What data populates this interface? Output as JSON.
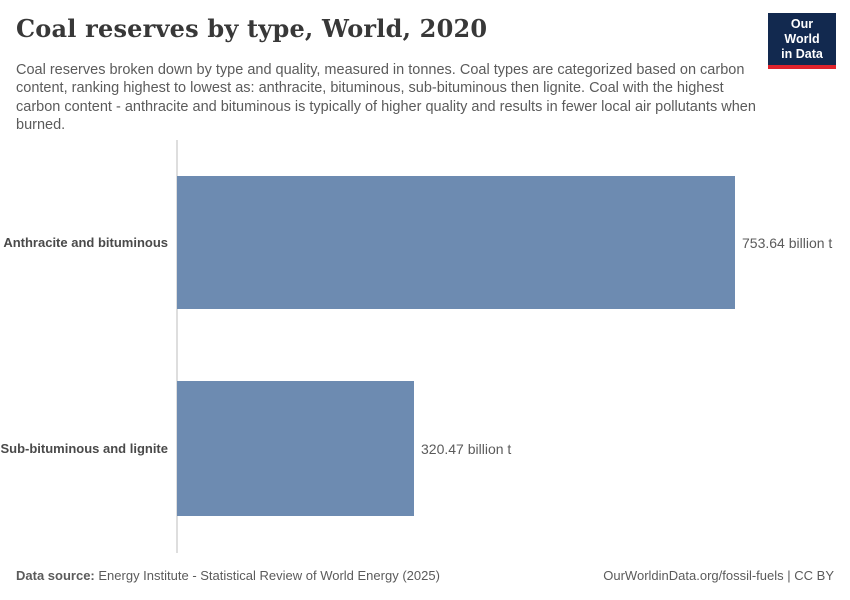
{
  "header": {
    "title": "Coal reserves by type, World, 2020",
    "subtitle": "Coal reserves broken down by type and quality, measured in tonnes. Coal types are categorized based on carbon content, ranking highest to lowest as: anthracite, bituminous, sub-bituminous then lignite. Coal with the highest carbon content - anthracite and bituminous is typically of higher quality and results in fewer local air pollutants when burned.",
    "logo": {
      "line1": "Our World",
      "line2": "in Data",
      "background_color": "#12294f",
      "accent_color": "#e0232c",
      "text_color": "#ffffff"
    }
  },
  "chart_data": {
    "type": "bar",
    "orientation": "horizontal",
    "title": "Coal reserves by type, World, 2020",
    "unit": "billion t",
    "categories": [
      "Anthracite and bituminous",
      "Sub-bituminous and lignite"
    ],
    "values": [
      753.64,
      320.47
    ],
    "value_labels": [
      "753.64 billion t",
      "320.47 billion t"
    ],
    "xlim": [
      0,
      753.64
    ],
    "grid": false,
    "legend": false,
    "bar_color": "#6d8bb1",
    "axis_line_color": "#dedede"
  },
  "footer": {
    "datasource_label": "Data source:",
    "datasource_text": "Energy Institute - Statistical Review of World Energy (2025)",
    "link_text": "OurWorldinData.org/fossil-fuels",
    "separator": " | ",
    "license_text": "CC BY"
  }
}
